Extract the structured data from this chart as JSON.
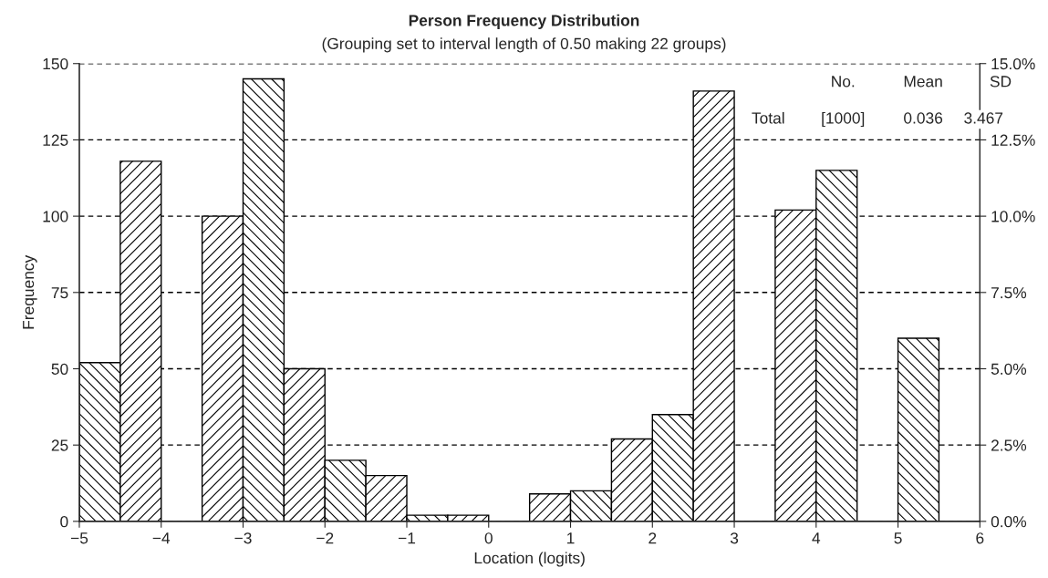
{
  "chart_data": {
    "type": "histogram",
    "title": "Person Frequency Distribution",
    "subtitle": "(Grouping set to interval length of 0.50 making 22 groups)",
    "xlabel": "Location (logits)",
    "ylabel": "Frequency",
    "bins": [
      -5,
      -4.5,
      -4,
      -3.5,
      -3,
      -2.5,
      -2,
      -1.5,
      -1,
      -0.5,
      0,
      0.5,
      1,
      1.5,
      2,
      2.5,
      3,
      3.5,
      4,
      4.5,
      5,
      5.5,
      6
    ],
    "values": [
      52,
      118,
      0,
      100,
      145,
      50,
      20,
      15,
      2,
      2,
      0,
      9,
      10,
      27,
      35,
      141,
      0,
      102,
      115,
      0,
      60,
      0
    ],
    "color": "#000000",
    "xlim": [
      -5,
      6
    ],
    "xticks": [
      {
        "value": -5,
        "label": "−5"
      },
      {
        "value": -4,
        "label": "−4"
      },
      {
        "value": -3,
        "label": "−3"
      },
      {
        "value": -2,
        "label": "−2"
      },
      {
        "value": -1,
        "label": "−1"
      },
      0,
      1,
      2,
      3,
      4,
      5,
      6
    ],
    "ylim": [
      0,
      150
    ],
    "yticks": [
      0,
      25,
      50,
      75,
      100,
      125,
      150
    ],
    "y2lim": [
      0,
      15
    ],
    "y2ticks": [
      {
        "value": 0,
        "label": "0.0%"
      },
      {
        "value": 2.5,
        "label": "2.5%"
      },
      {
        "value": 5,
        "label": "5.0%"
      },
      {
        "value": 7.5,
        "label": "7.5%"
      },
      {
        "value": 10,
        "label": "10.0%"
      },
      {
        "value": 12.5,
        "label": "12.5%"
      },
      {
        "value": 15,
        "label": "15.0%"
      }
    ],
    "grid": "y",
    "legend": false,
    "annotations": [
      "No.",
      "Mean",
      "SD",
      "Total",
      "[1000]",
      "0.036",
      "3.467"
    ]
  }
}
